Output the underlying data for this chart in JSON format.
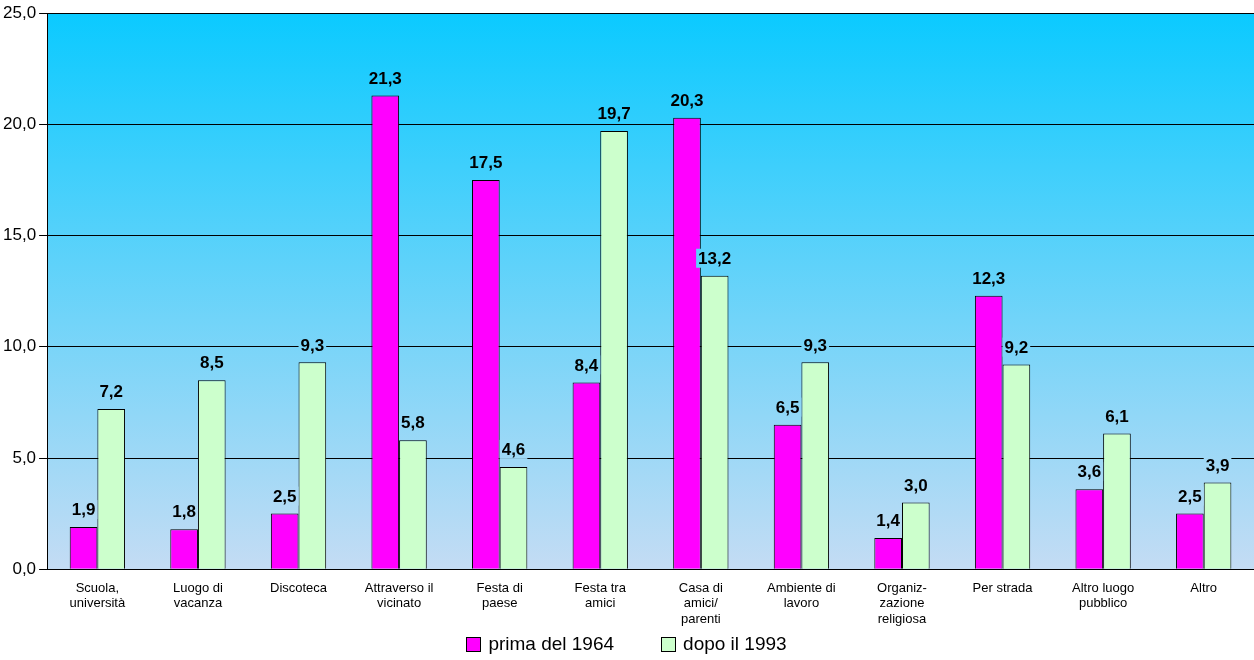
{
  "chart_data": {
    "type": "bar",
    "categories": [
      "Scuola,\nuniversità",
      "Luogo di\nvacanza",
      "Discoteca",
      "Attraverso il\nvicinato",
      "Festa di\npaese",
      "Festa tra\namici",
      "Casa di\namici/\nparenti",
      "Ambiente di\nlavoro",
      "Organiz-\nzazione\nreligiosa",
      "Per strada",
      "Altro luogo\npubblico",
      "Altro"
    ],
    "series": [
      {
        "name": "prima del 1964",
        "color": "#ff00ff",
        "values": [
          1.9,
          1.8,
          2.5,
          21.3,
          17.5,
          8.4,
          20.3,
          6.5,
          1.4,
          12.3,
          3.6,
          2.5
        ],
        "value_labels": [
          "1,9",
          "1,8",
          "2,5",
          "21,3",
          "17,5",
          "8,4",
          "20,3",
          "6,5",
          "1,4",
          "12,3",
          "3,6",
          "2,5"
        ]
      },
      {
        "name": "dopo il 1993",
        "color": "#ccffcc",
        "values": [
          7.2,
          8.5,
          9.3,
          5.8,
          4.6,
          19.7,
          13.2,
          9.3,
          3.0,
          9.2,
          6.1,
          3.9
        ],
        "value_labels": [
          "7,2",
          "8,5",
          "9,3",
          "5,8",
          "4,6",
          "19,7",
          "13,2",
          "9,3",
          "3,0",
          "9,2",
          "6,1",
          "3,9"
        ]
      }
    ],
    "ylim": [
      0,
      25
    ],
    "yticks": [
      {
        "value": 0,
        "label": "0,0"
      },
      {
        "value": 5,
        "label": "5,0"
      },
      {
        "value": 10,
        "label": "10,0"
      },
      {
        "value": 15,
        "label": "15,0"
      },
      {
        "value": 20,
        "label": "20,0"
      },
      {
        "value": 25,
        "label": "25,0"
      }
    ],
    "grid": "y",
    "legend": "bottom"
  }
}
